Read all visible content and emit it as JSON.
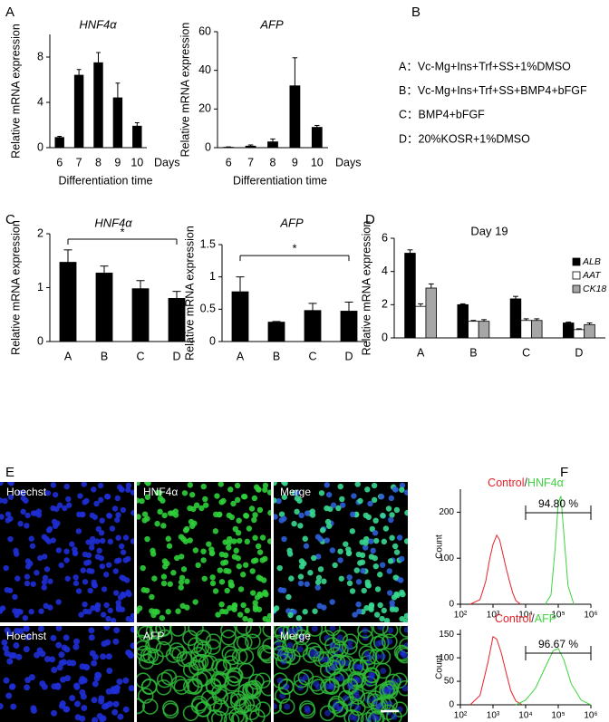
{
  "panel_labels": [
    "A",
    "B",
    "C",
    "D",
    "E",
    "F"
  ],
  "protocols": [
    {
      "text": "A：Vc-Mg+Ins+Trf+SS+1%DMSO",
      "color": "#e8202a"
    },
    {
      "text": "B：Vc-Mg+Ins+Trf+SS+BMP4+bFGF",
      "color": "#000000"
    },
    {
      "text": "C：BMP4+bFGF",
      "color": "#000000"
    },
    {
      "text": "D：20%KOSR+1%DMSO",
      "color": "#000000"
    }
  ],
  "images": {
    "rows": [
      [
        "Hoechst",
        "HNF4α",
        "Merge"
      ],
      [
        "Hoechst",
        "AFP",
        "Merge"
      ]
    ]
  },
  "chart_data": [
    {
      "type": "bar",
      "title": "HNF4α",
      "ylabel": "Relative mRNA expression",
      "xlabel": "Differentiation time",
      "x_unit": "Days",
      "categories": [
        "6",
        "7",
        "8",
        "9",
        "10"
      ],
      "values": [
        0.9,
        6.4,
        7.5,
        4.4,
        1.9
      ],
      "errors": [
        0.1,
        0.5,
        0.9,
        1.3,
        0.3
      ],
      "color": "#000000",
      "ylim": [
        0,
        10
      ],
      "yticks": [
        0,
        4,
        8
      ]
    },
    {
      "type": "bar",
      "title": "AFP",
      "ylabel": "Relative mRNA expression",
      "xlabel": "Differentiation time",
      "x_unit": "Days",
      "categories": [
        "6",
        "7",
        "8",
        "9",
        "10"
      ],
      "values": [
        0.2,
        0.8,
        3,
        32,
        10.5
      ],
      "errors": [
        0.2,
        0.6,
        1.5,
        14.5,
        1
      ],
      "color": "#000000",
      "ylim": [
        0,
        60
      ],
      "yticks": [
        0,
        20,
        40,
        60
      ]
    },
    {
      "type": "bar",
      "title": "HNF4α",
      "ylabel": "Relative mRNA expression",
      "categories": [
        "A",
        "B",
        "C",
        "D"
      ],
      "values": [
        1.47,
        1.27,
        0.98,
        0.8
      ],
      "errors": [
        0.23,
        0.13,
        0.15,
        0.13
      ],
      "color": "#000000",
      "ylim": [
        0,
        2
      ],
      "yticks": [
        0,
        1,
        2
      ],
      "significance": {
        "from": "A",
        "to": "D",
        "y": 1.9,
        "label": "*"
      }
    },
    {
      "type": "bar",
      "title": "AFP",
      "ylabel": "Relative mRNA expression",
      "categories": [
        "A",
        "B",
        "C",
        "D"
      ],
      "values": [
        0.77,
        0.3,
        0.48,
        0.47
      ],
      "errors": [
        0.23,
        0.01,
        0.11,
        0.14
      ],
      "color": "#000000",
      "ylim": [
        0,
        1.5
      ],
      "yticks": [
        0,
        0.5,
        1,
        1.5
      ],
      "significance": {
        "from": "A",
        "to": "D",
        "y": 1.33,
        "label": "*"
      }
    },
    {
      "type": "bar",
      "title": "Day 19",
      "ylabel": "Relative mRNA expression",
      "categories": [
        "A",
        "B",
        "C",
        "D"
      ],
      "legend": "top-right",
      "series": [
        {
          "name": "ALB",
          "color": "#000000",
          "values": [
            5.1,
            2.0,
            2.35,
            0.9
          ],
          "errors": [
            0.2,
            0.05,
            0.15,
            0.05
          ]
        },
        {
          "name": "AAT",
          "color": "#ffffff",
          "values": [
            1.9,
            1.0,
            1.05,
            0.5
          ],
          "errors": [
            0.15,
            0.05,
            0.1,
            0.05
          ]
        },
        {
          "name": "CK18",
          "color": "#a6a6a6",
          "values": [
            3.0,
            1.0,
            1.05,
            0.8
          ],
          "errors": [
            0.25,
            0.1,
            0.1,
            0.1
          ]
        }
      ],
      "ylim": [
        0,
        6
      ],
      "yticks": [
        0,
        2,
        4,
        6
      ]
    },
    {
      "type": "line",
      "title_separator": "/",
      "ylabel": "Count",
      "log_x": true,
      "series": [
        {
          "name": "Control",
          "color": "#e8202a",
          "x": [
            200,
            400,
            600,
            800,
            1000,
            1300,
            1600,
            2000,
            2500,
            3200,
            4000,
            5000,
            7000
          ],
          "values": [
            0,
            10,
            50,
            100,
            130,
            150,
            140,
            110,
            80,
            50,
            25,
            8,
            0
          ]
        },
        {
          "name": "HNF4α",
          "color": "#3fd43f",
          "x": [
            40000,
            60000,
            80000,
            100000,
            120000,
            150000,
            200000,
            300000
          ],
          "values": [
            0,
            20,
            120,
            220,
            235,
            150,
            40,
            0
          ]
        }
      ],
      "gate": {
        "range": [
          10000,
          1000000
        ],
        "label": "94.80 %"
      },
      "xlim": [
        100,
        1000000
      ],
      "xticks": [
        {
          "value": 100,
          "label": "10²"
        },
        {
          "value": 1000,
          "label": "10³"
        },
        {
          "value": 10000,
          "label": "10⁴"
        },
        {
          "value": 100000,
          "label": "10⁵"
        },
        {
          "value": 1000000,
          "label": "10⁶"
        }
      ],
      "ylim": [
        0,
        250
      ],
      "yticks": [
        0,
        100,
        200
      ]
    },
    {
      "type": "line",
      "title_separator": "/",
      "ylabel": "Count",
      "log_x": true,
      "series": [
        {
          "name": "Control",
          "color": "#e8202a",
          "x": [
            200,
            400,
            700,
            1000,
            1300,
            1800,
            2500,
            3500,
            5000,
            8000
          ],
          "values": [
            0,
            20,
            90,
            145,
            140,
            110,
            70,
            30,
            8,
            0
          ]
        },
        {
          "name": "AFP",
          "color": "#3fd43f",
          "x": [
            5000,
            10000,
            20000,
            40000,
            70000,
            100000,
            150000,
            250000,
            500000,
            1000000
          ],
          "values": [
            0,
            10,
            35,
            80,
            115,
            120,
            95,
            45,
            10,
            0
          ]
        }
      ],
      "gate": {
        "range": [
          10000,
          1000000
        ],
        "label": "96.67 %"
      },
      "xlim": [
        100,
        1000000
      ],
      "xticks": [
        {
          "value": 100,
          "label": "10²"
        },
        {
          "value": 1000,
          "label": "10³"
        },
        {
          "value": 10000,
          "label": "10⁴"
        },
        {
          "value": 100000,
          "label": "10⁵"
        },
        {
          "value": 1000000,
          "label": "10⁶"
        }
      ],
      "ylim": [
        0,
        160
      ],
      "yticks": [
        0,
        50,
        100,
        150
      ]
    }
  ]
}
